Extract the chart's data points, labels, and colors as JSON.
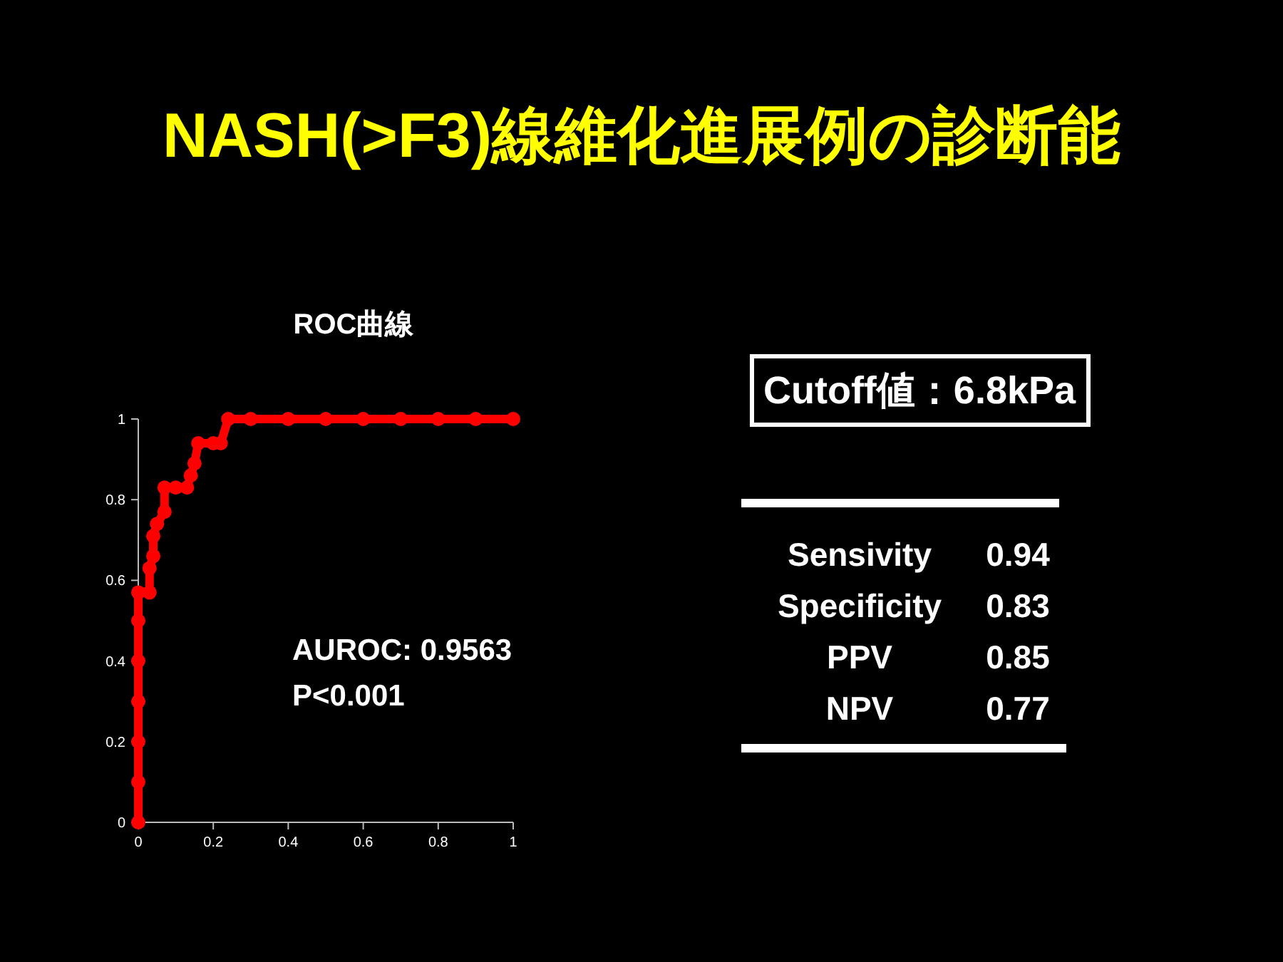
{
  "chart_data": [
    {
      "type": "line",
      "title": "NASH(>F3)線維化進展例の診断能",
      "subtitle": "ROC曲線",
      "x": [
        0,
        0,
        0,
        0,
        0,
        0,
        0,
        0.03,
        0.03,
        0.04,
        0.04,
        0.05,
        0.07,
        0.07,
        0.1,
        0.13,
        0.14,
        0.15,
        0.16,
        0.2,
        0.22,
        0.24,
        0.3,
        0.4,
        0.5,
        0.6,
        0.7,
        0.8,
        0.9,
        1
      ],
      "series": [
        {
          "color": "#ff0000",
          "values": [
            0,
            0.1,
            0.2,
            0.3,
            0.4,
            0.5,
            0.57,
            0.57,
            0.63,
            0.66,
            0.71,
            0.74,
            0.77,
            0.83,
            0.83,
            0.83,
            0.86,
            0.89,
            0.94,
            0.94,
            0.94,
            1,
            1,
            1,
            1,
            1,
            1,
            1,
            1,
            1
          ]
        }
      ],
      "xlim": [
        0,
        1
      ],
      "ylim": [
        0,
        1
      ],
      "xticks": [
        0,
        0.2,
        0.4,
        0.6,
        0.8,
        1
      ],
      "yticks": [
        0,
        0.2,
        0.4,
        0.6,
        0.8,
        1
      ],
      "marker": "circle",
      "line_style": "solid",
      "grid": false,
      "annotations": [
        "AUROC: 0.9563",
        "P<0.001"
      ]
    },
    {
      "type": "other",
      "title": "Cutoff値：6.8kPa",
      "categories": [
        "Sensivity",
        "Specificity",
        "PPV",
        "NPV"
      ],
      "values": [
        0.94,
        0.83,
        0.85,
        0.77
      ],
      "data_labels": true
    }
  ]
}
